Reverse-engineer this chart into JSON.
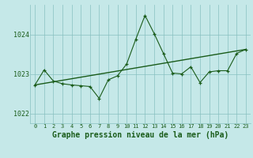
{
  "hours": [
    0,
    1,
    2,
    3,
    4,
    5,
    6,
    7,
    8,
    9,
    10,
    11,
    12,
    13,
    14,
    15,
    16,
    17,
    18,
    19,
    20,
    21,
    22,
    23
  ],
  "pressure": [
    1022.72,
    1023.1,
    1022.82,
    1022.75,
    1022.72,
    1022.7,
    1022.68,
    1022.38,
    1022.85,
    1022.95,
    1023.25,
    1023.88,
    1024.48,
    1024.02,
    1023.52,
    1023.02,
    1023.0,
    1023.18,
    1022.78,
    1023.05,
    1023.08,
    1023.08,
    1023.52,
    1023.62
  ],
  "trend_x": [
    0,
    23
  ],
  "trend_y": [
    1022.72,
    1023.62
  ],
  "line_color": "#1a5c1a",
  "marker": "+",
  "background_color": "#c5e8e8",
  "grid_color": "#88c0c0",
  "ylabel_ticks": [
    1022,
    1023,
    1024
  ],
  "xlabel": "Graphe pression niveau de la mer (hPa)",
  "ylim": [
    1021.75,
    1024.75
  ],
  "xlim": [
    -0.5,
    23.5
  ],
  "xlabel_fontsize": 7,
  "xtick_fontsize": 5,
  "ytick_fontsize": 6
}
